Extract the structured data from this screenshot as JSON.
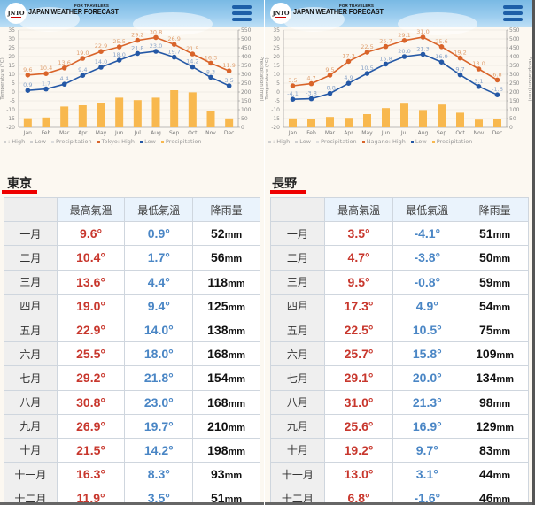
{
  "header": {
    "logo_text": "JNTO",
    "brand_sub": "FOR TRAVELERS",
    "brand_main": "JAPAN WEATHER FORECAST",
    "menu_icon": "hamburger-menu-icon"
  },
  "colors": {
    "high_line": "#d9642a",
    "low_line": "#2458a6",
    "precip_bar": "#f8b84e",
    "table_high": "#c8372d",
    "table_low": "#4a86c5",
    "title_underline": "#ee0000"
  },
  "table_headers": {
    "corner": "",
    "high": "最高氣溫",
    "low": "最低氣溫",
    "precip": "降雨量"
  },
  "months_zh": [
    "一月",
    "二月",
    "三月",
    "四月",
    "五月",
    "六月",
    "七月",
    "八月",
    "九月",
    "十月",
    "十一月",
    "十二月"
  ],
  "panels": [
    {
      "city": "東京",
      "legend": [
        ": High",
        "Low",
        "Precipitation",
        "Tokyo: High",
        "Low",
        "Precipitation"
      ],
      "rows": [
        {
          "month": "一月",
          "high": "9.6°",
          "low": "0.9°",
          "precip": "52",
          "unit": "mm"
        },
        {
          "month": "二月",
          "high": "10.4°",
          "low": "1.7°",
          "precip": "56",
          "unit": "mm"
        },
        {
          "month": "三月",
          "high": "13.6°",
          "low": "4.4°",
          "precip": "118",
          "unit": "mm"
        },
        {
          "month": "四月",
          "high": "19.0°",
          "low": "9.4°",
          "precip": "125",
          "unit": "mm"
        },
        {
          "month": "五月",
          "high": "22.9°",
          "low": "14.0°",
          "precip": "138",
          "unit": "mm"
        },
        {
          "month": "六月",
          "high": "25.5°",
          "low": "18.0°",
          "precip": "168",
          "unit": "mm"
        },
        {
          "month": "七月",
          "high": "29.2°",
          "low": "21.8°",
          "precip": "154",
          "unit": "mm"
        },
        {
          "month": "八月",
          "high": "30.8°",
          "low": "23.0°",
          "precip": "168",
          "unit": "mm"
        },
        {
          "month": "九月",
          "high": "26.9°",
          "low": "19.7°",
          "precip": "210",
          "unit": "mm"
        },
        {
          "month": "十月",
          "high": "21.5°",
          "low": "14.2°",
          "precip": "198",
          "unit": "mm"
        },
        {
          "month": "十一月",
          "high": "16.3°",
          "low": "8.3°",
          "precip": "93",
          "unit": "mm"
        },
        {
          "month": "十二月",
          "high": "11.9°",
          "low": "3.5°",
          "precip": "51",
          "unit": "mm"
        }
      ]
    },
    {
      "city": "長野",
      "legend": [
        ": High",
        "Low",
        "Precipitation",
        "Nagano: High",
        "Low",
        "Precipitation"
      ],
      "rows": [
        {
          "month": "一月",
          "high": "3.5°",
          "low": "-4.1°",
          "precip": "51",
          "unit": "mm"
        },
        {
          "month": "二月",
          "high": "4.7°",
          "low": "-3.8°",
          "precip": "50",
          "unit": "mm"
        },
        {
          "month": "三月",
          "high": "9.5°",
          "low": "-0.8°",
          "precip": "59",
          "unit": "mm"
        },
        {
          "month": "四月",
          "high": "17.3°",
          "low": "4.9°",
          "precip": "54",
          "unit": "mm"
        },
        {
          "month": "五月",
          "high": "22.5°",
          "low": "10.5°",
          "precip": "75",
          "unit": "mm"
        },
        {
          "month": "六月",
          "high": "25.7°",
          "low": "15.8°",
          "precip": "109",
          "unit": "mm"
        },
        {
          "month": "七月",
          "high": "29.1°",
          "low": "20.0°",
          "precip": "134",
          "unit": "mm"
        },
        {
          "month": "八月",
          "high": "31.0°",
          "low": "21.3°",
          "precip": "98",
          "unit": "mm"
        },
        {
          "month": "九月",
          "high": "25.6°",
          "low": "16.9°",
          "precip": "129",
          "unit": "mm"
        },
        {
          "month": "十月",
          "high": "19.2°",
          "low": "9.7°",
          "precip": "83",
          "unit": "mm"
        },
        {
          "month": "十一月",
          "high": "13.0°",
          "low": "3.1°",
          "precip": "44",
          "unit": "mm"
        },
        {
          "month": "十二月",
          "high": "6.8°",
          "low": "-1.6°",
          "precip": "46",
          "unit": "mm"
        }
      ]
    }
  ],
  "chart_data": [
    {
      "type": "line+bar",
      "title": "Tokyo",
      "categories": [
        "Jan",
        "Feb",
        "Mar",
        "Apr",
        "May",
        "Jun",
        "Jul",
        "Aug",
        "Sep",
        "Oct",
        "Nov",
        "Dec"
      ],
      "series": [
        {
          "name": "Tokyo: High",
          "type": "line",
          "axis": "left",
          "color": "#d9642a",
          "values": [
            9.6,
            10.4,
            13.6,
            19.0,
            22.9,
            25.5,
            29.2,
            30.8,
            26.9,
            21.5,
            16.3,
            11.9
          ]
        },
        {
          "name": "Low",
          "type": "line",
          "axis": "left",
          "color": "#2458a6",
          "values": [
            0.9,
            1.7,
            4.4,
            9.4,
            14.0,
            18.0,
            21.8,
            23.0,
            19.7,
            14.2,
            8.3,
            3.5
          ]
        },
        {
          "name": "Precipitation",
          "type": "bar",
          "axis": "right",
          "color": "#f8b84e",
          "values": [
            52,
            56,
            118,
            125,
            138,
            168,
            154,
            168,
            210,
            198,
            93,
            51
          ]
        }
      ],
      "ylabel": "Temperature (°C)",
      "y2label": "Precipitation (mm)",
      "ylim": [
        -20,
        35
      ],
      "yticks": [
        35,
        30,
        25,
        20,
        15,
        10,
        5,
        0,
        -5,
        -10,
        -15,
        -20
      ],
      "y2lim": [
        0,
        550
      ],
      "y2ticks": [
        550,
        500,
        450,
        400,
        350,
        300,
        250,
        200,
        150,
        100,
        50,
        0
      ],
      "grid": true,
      "legend_position": "bottom"
    },
    {
      "type": "line+bar",
      "title": "Nagano",
      "categories": [
        "Jan",
        "Feb",
        "Mar",
        "Apr",
        "May",
        "Jun",
        "Jul",
        "Aug",
        "Sep",
        "Oct",
        "Nov",
        "Dec"
      ],
      "series": [
        {
          "name": "Nagano: High",
          "type": "line",
          "axis": "left",
          "color": "#d9642a",
          "values": [
            3.5,
            4.7,
            9.5,
            17.3,
            22.5,
            25.7,
            29.1,
            31.0,
            25.6,
            19.2,
            13.0,
            6.8
          ]
        },
        {
          "name": "Low",
          "type": "line",
          "axis": "left",
          "color": "#2458a6",
          "values": [
            -4.1,
            -3.8,
            -0.8,
            4.9,
            10.5,
            15.8,
            20.0,
            21.3,
            16.9,
            9.7,
            3.1,
            -1.6
          ]
        },
        {
          "name": "Precipitation",
          "type": "bar",
          "axis": "right",
          "color": "#f8b84e",
          "values": [
            51,
            50,
            59,
            54,
            75,
            109,
            134,
            98,
            129,
            83,
            44,
            46
          ]
        }
      ],
      "ylabel": "Temperature (°C)",
      "y2label": "Precipitation (mm)",
      "ylim": [
        -20,
        35
      ],
      "yticks": [
        35,
        30,
        25,
        20,
        15,
        10,
        5,
        0,
        -5,
        -10,
        -15,
        -20
      ],
      "y2lim": [
        0,
        550
      ],
      "y2ticks": [
        550,
        500,
        450,
        400,
        350,
        300,
        250,
        200,
        150,
        100,
        50,
        0
      ],
      "grid": true,
      "legend_position": "bottom"
    }
  ]
}
